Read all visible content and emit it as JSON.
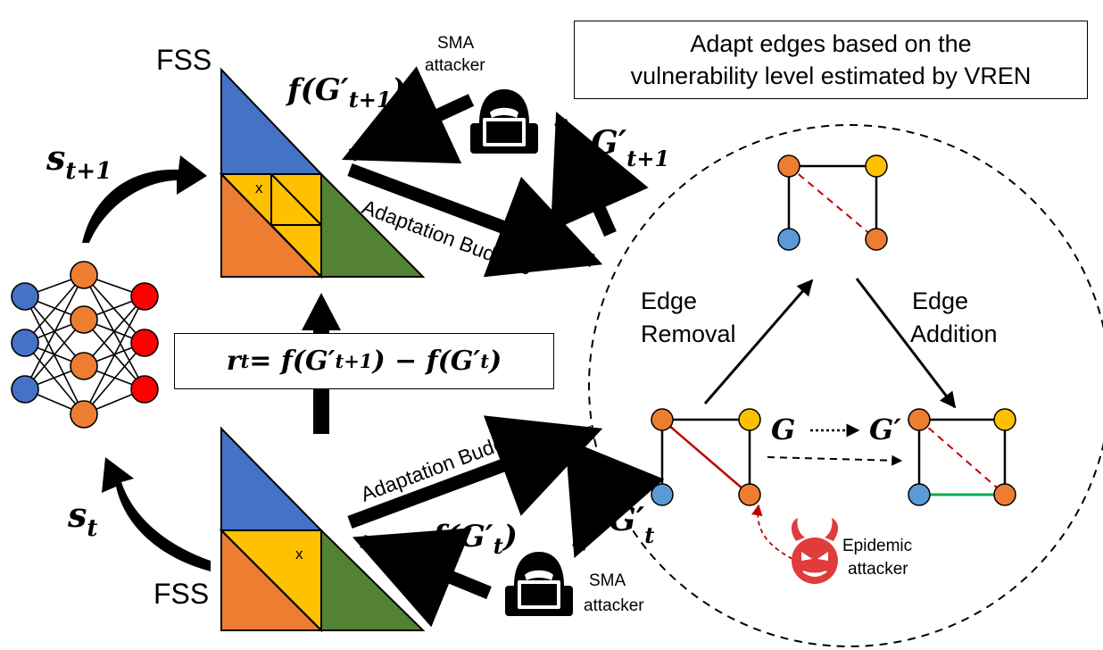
{
  "labels": {
    "fss_top": "FSS",
    "fss_bottom": "FSS",
    "x_mark_top": "x",
    "x_mark_bottom": "x",
    "sma_top_line1": "SMA",
    "sma_top_line2": "attacker",
    "sma_bottom_line1": "SMA",
    "sma_bottom_line2": "attacker",
    "adaptation_budgets_top": "Adaptation Budgets",
    "adaptation_budgets_bottom": "Adaptation Budgets",
    "edge_removal_line1": "Edge",
    "edge_removal_line2": "Removal",
    "edge_addition_line1": "Edge",
    "edge_addition_line2": "Addition",
    "epidemic_line1": "Epidemic",
    "epidemic_line2": "attacker"
  },
  "title_box": {
    "line1": "Adapt edges based on the",
    "line2": "vulnerability level estimated by VREN"
  },
  "math": {
    "s_next": "s",
    "s_next_sub": "t+1",
    "s_t": "s",
    "s_t_sub": "t",
    "f_top": "f(G′",
    "f_top_sub": "t+1",
    "f_top_close": ")",
    "f_bottom": "f(G′",
    "f_bottom_sub": "t",
    "f_bottom_close": ")",
    "g_top": "G′",
    "g_top_sub": "t+1",
    "g_bottom": "G′",
    "g_bottom_sub": "t",
    "G": "G",
    "G_prime": "G′",
    "reward": "r",
    "reward_sub": "t",
    "reward_rhs1": " = f(G′",
    "reward_rhs1_sub": "t+1",
    "reward_rhs2": ") − f(G′",
    "reward_rhs2_sub": "t",
    "reward_rhs3": ")"
  },
  "colors": {
    "blue": "#4472c4",
    "orange": "#ed7d31",
    "yellow": "#ffc000",
    "green": "#548235",
    "red": "#ff0000",
    "dark_red": "#c00000",
    "green_edge": "#00b050",
    "devil_red": "#e03c3c"
  }
}
